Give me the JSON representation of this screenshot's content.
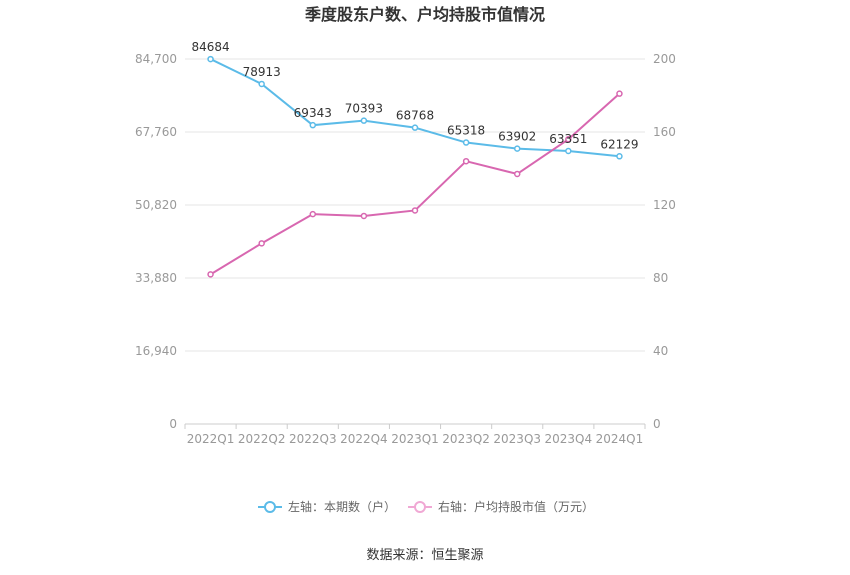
{
  "chart_data": {
    "type": "line",
    "title": "季度股东户数、户均持股市值情况",
    "categories": [
      "2022Q1",
      "2022Q2",
      "2022Q3",
      "2022Q4",
      "2023Q1",
      "2023Q2",
      "2023Q3",
      "2023Q4",
      "2024Q1"
    ],
    "series": [
      {
        "name": "左轴：本期数（户）",
        "axis": "left",
        "color": "#5bbbe8",
        "values": [
          84684,
          78913,
          69343,
          70393,
          68768,
          65318,
          63902,
          63351,
          62129
        ],
        "labels": [
          "84684",
          "78913",
          "69343",
          "70393",
          "68768",
          "65318",
          "63902",
          "63351",
          "62129"
        ]
      },
      {
        "name": "右轴：户均持股市值（万元）",
        "axis": "right",
        "color": "#d867b0",
        "values": [
          82,
          99,
          115,
          114,
          117,
          144,
          137,
          156,
          181
        ]
      }
    ],
    "left_axis": {
      "min": 0,
      "max": 84700,
      "ticks": [
        "0",
        "16,940",
        "33,880",
        "50,820",
        "67,760",
        "84,700"
      ]
    },
    "right_axis": {
      "min": 0,
      "max": 200,
      "ticks": [
        "0",
        "40",
        "80",
        "120",
        "160",
        "200"
      ]
    },
    "grid": true,
    "legend_position": "bottom"
  },
  "source_text": "数据来源：恒生聚源"
}
